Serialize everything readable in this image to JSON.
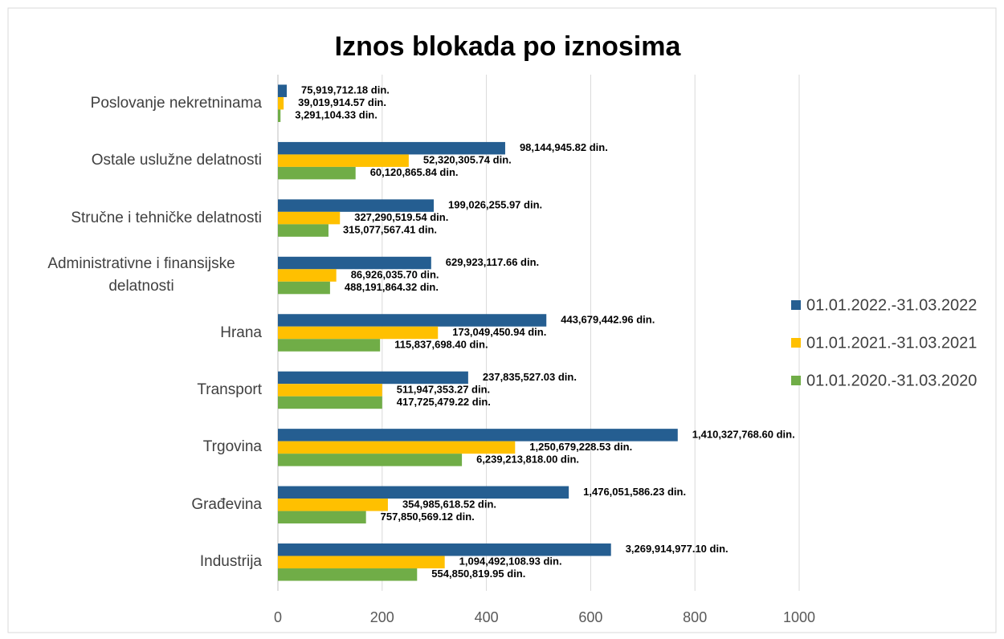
{
  "chart_data": {
    "type": "hbar",
    "title": "Iznos blokada po iznosima",
    "categories": [
      "Poslovanje nekretninama",
      "Ostale uslužne delatnosti",
      "Stručne i tehničke delatnosti",
      "Administrativne i finansijske delatnosti",
      "Hrana",
      "Transport",
      "Trgovina",
      "Građevina",
      "Industrija"
    ],
    "series": [
      {
        "name": "01.01.2022.-31.03.2022",
        "color": "#255e91",
        "values": [
          17,
          436,
          299,
          294,
          515,
          365,
          767,
          558,
          639
        ],
        "labels": [
          "75,919,712.18 din.",
          "98,144,945.82 din.",
          "199,026,255.97 din.",
          "629,923,117.66 din.",
          "443,679,442.96 din.",
          "237,835,527.03 din.",
          "1,410,327,768.60 din.",
          "1,476,051,586.23 din.",
          "3,269,914,977.10 din."
        ]
      },
      {
        "name": "01.01.2021.-31.03.2021",
        "color": "#ffc000",
        "values": [
          11,
          251,
          119,
          112,
          307,
          200,
          455,
          211,
          320
        ],
        "labels": [
          "39,019,914.57 din.",
          "52,320,305.74 din.",
          "327,290,519.54 din.",
          "86,926,035.70 din.",
          "173,049,450.94 din.",
          "511,947,353.27 din.",
          "1,250,679,228.53 din.",
          "354,985,618.52 din.",
          "1,094,492,108.93 din."
        ]
      },
      {
        "name": "01.01.2020.-31.03.2020",
        "color": "#70ad47",
        "values": [
          5,
          149,
          97,
          100,
          196,
          200,
          353,
          169,
          267
        ],
        "labels": [
          "3,291,104.33 din.",
          "60,120,865.84 din.",
          "315,077,567.41 din.",
          "488,191,864.32 din.",
          "115,837,698.40 din.",
          "417,725,479.22 din.",
          "6,239,213,818.00 din.",
          "757,850,569.12 din.",
          "554,850,819.95 din."
        ]
      }
    ],
    "xlim": [
      0,
      1000
    ],
    "xticks": [
      0,
      200,
      400,
      600,
      800,
      1000
    ],
    "grid": true,
    "legend": "right"
  }
}
